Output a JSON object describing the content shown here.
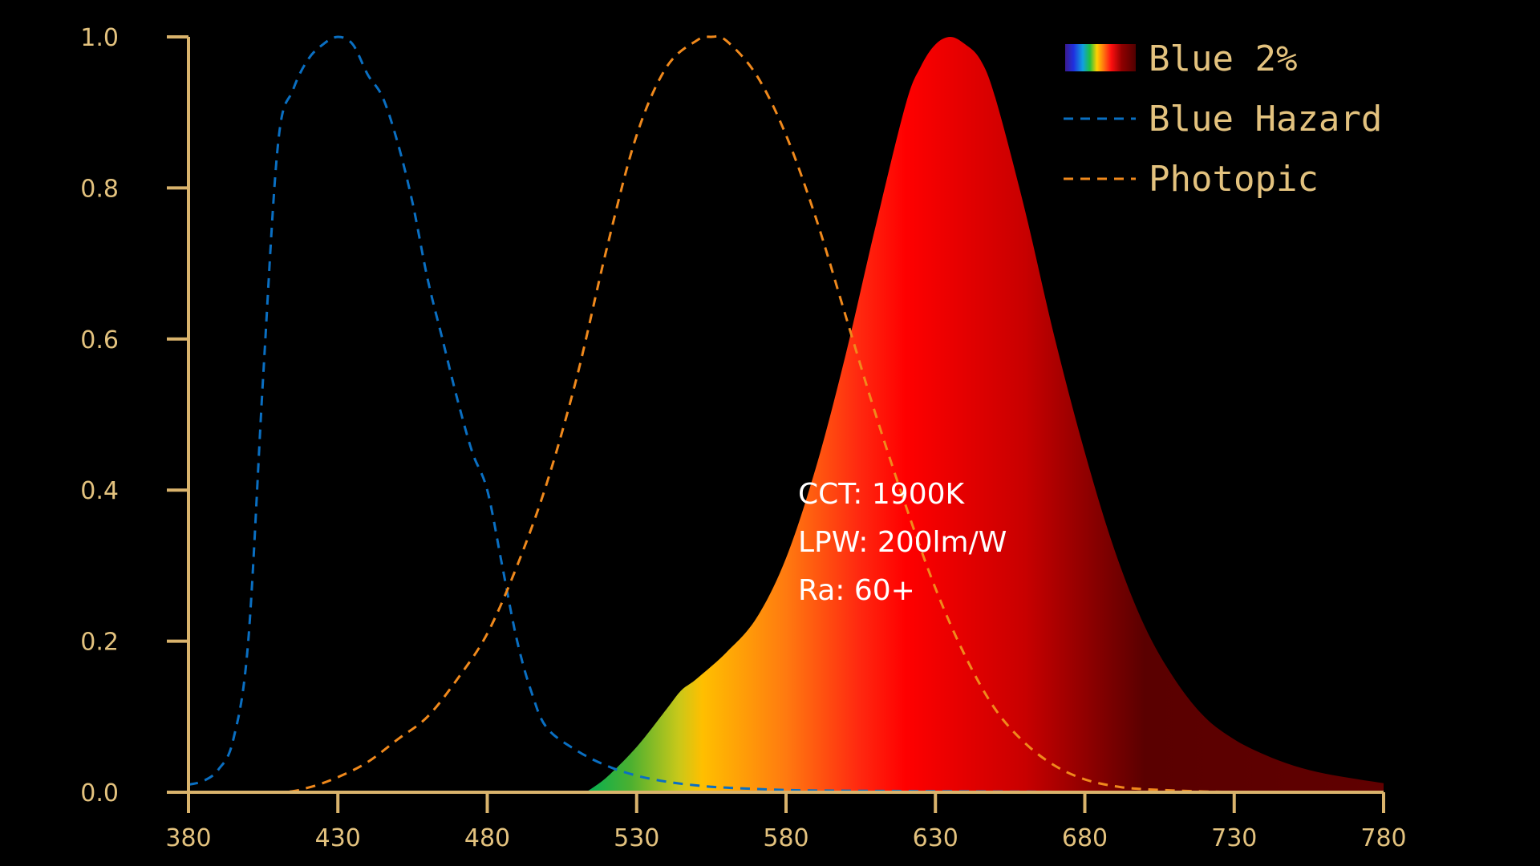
{
  "chart_data": {
    "type": "area",
    "title": "",
    "xlabel": "",
    "ylabel": "",
    "xlim": [
      380,
      780
    ],
    "ylim": [
      0,
      1.0
    ],
    "x_ticks": [
      "380",
      "430",
      "480",
      "530",
      "580",
      "630",
      "680",
      "730",
      "780"
    ],
    "y_ticks": [
      "0.0",
      "0.2",
      "0.4",
      "0.6",
      "0.8",
      "1.0"
    ],
    "grid": false,
    "legend_position": "top-right",
    "series": [
      {
        "name": "Blue 2%",
        "style": "filled-spectrum",
        "x": [
          513,
          520,
          530,
          540,
          545,
          550,
          560,
          570,
          580,
          590,
          600,
          610,
          620,
          625,
          630,
          635,
          640,
          645,
          650,
          660,
          670,
          680,
          690,
          700,
          710,
          720,
          730,
          740,
          750,
          760,
          770,
          780
        ],
        "y": [
          0.0,
          0.02,
          0.06,
          0.11,
          0.135,
          0.15,
          0.185,
          0.23,
          0.31,
          0.43,
          0.58,
          0.75,
          0.91,
          0.96,
          0.99,
          1.0,
          0.99,
          0.97,
          0.92,
          0.77,
          0.6,
          0.45,
          0.32,
          0.22,
          0.15,
          0.1,
          0.07,
          0.05,
          0.035,
          0.025,
          0.018,
          0.012
        ]
      },
      {
        "name": "Blue Hazard",
        "style": "dashed",
        "color": "#0a6fc2",
        "x": [
          380,
          385,
          390,
          395,
          400,
          405,
          410,
          415,
          420,
          425,
          430,
          435,
          440,
          445,
          450,
          455,
          460,
          465,
          470,
          475,
          480,
          485,
          490,
          495,
          500,
          510,
          520,
          530,
          540,
          550,
          560,
          580,
          600,
          650,
          700,
          780
        ],
        "y": [
          0.01,
          0.015,
          0.03,
          0.07,
          0.2,
          0.55,
          0.86,
          0.93,
          0.97,
          0.99,
          1.0,
          0.99,
          0.95,
          0.92,
          0.86,
          0.78,
          0.68,
          0.6,
          0.52,
          0.45,
          0.4,
          0.3,
          0.2,
          0.13,
          0.085,
          0.055,
          0.035,
          0.022,
          0.014,
          0.009,
          0.006,
          0.003,
          0.002,
          0.001,
          0.0,
          0.0
        ]
      },
      {
        "name": "Photopic",
        "style": "dashed",
        "color": "#f0891c",
        "x": [
          380,
          410,
          420,
          430,
          440,
          450,
          460,
          470,
          480,
          490,
          500,
          510,
          520,
          530,
          540,
          550,
          555,
          560,
          570,
          580,
          590,
          600,
          610,
          620,
          630,
          640,
          650,
          660,
          670,
          680,
          690,
          700,
          720,
          740,
          780
        ],
        "y": [
          0.0,
          0.0,
          0.006,
          0.02,
          0.04,
          0.07,
          0.1,
          0.15,
          0.21,
          0.3,
          0.41,
          0.55,
          0.72,
          0.87,
          0.96,
          0.995,
          1.0,
          0.995,
          0.95,
          0.87,
          0.76,
          0.63,
          0.5,
          0.38,
          0.27,
          0.18,
          0.11,
          0.065,
          0.035,
          0.017,
          0.008,
          0.004,
          0.001,
          0.0,
          0.0
        ]
      }
    ],
    "annotations": [
      "CCT: 1900K",
      "LPW: 200lm/W",
      "Ra: 60+"
    ],
    "colors": {
      "axis": "#d9b36c",
      "tick_label": "#e3c27e",
      "annotation": "#ffffff",
      "background": "#000000"
    }
  }
}
